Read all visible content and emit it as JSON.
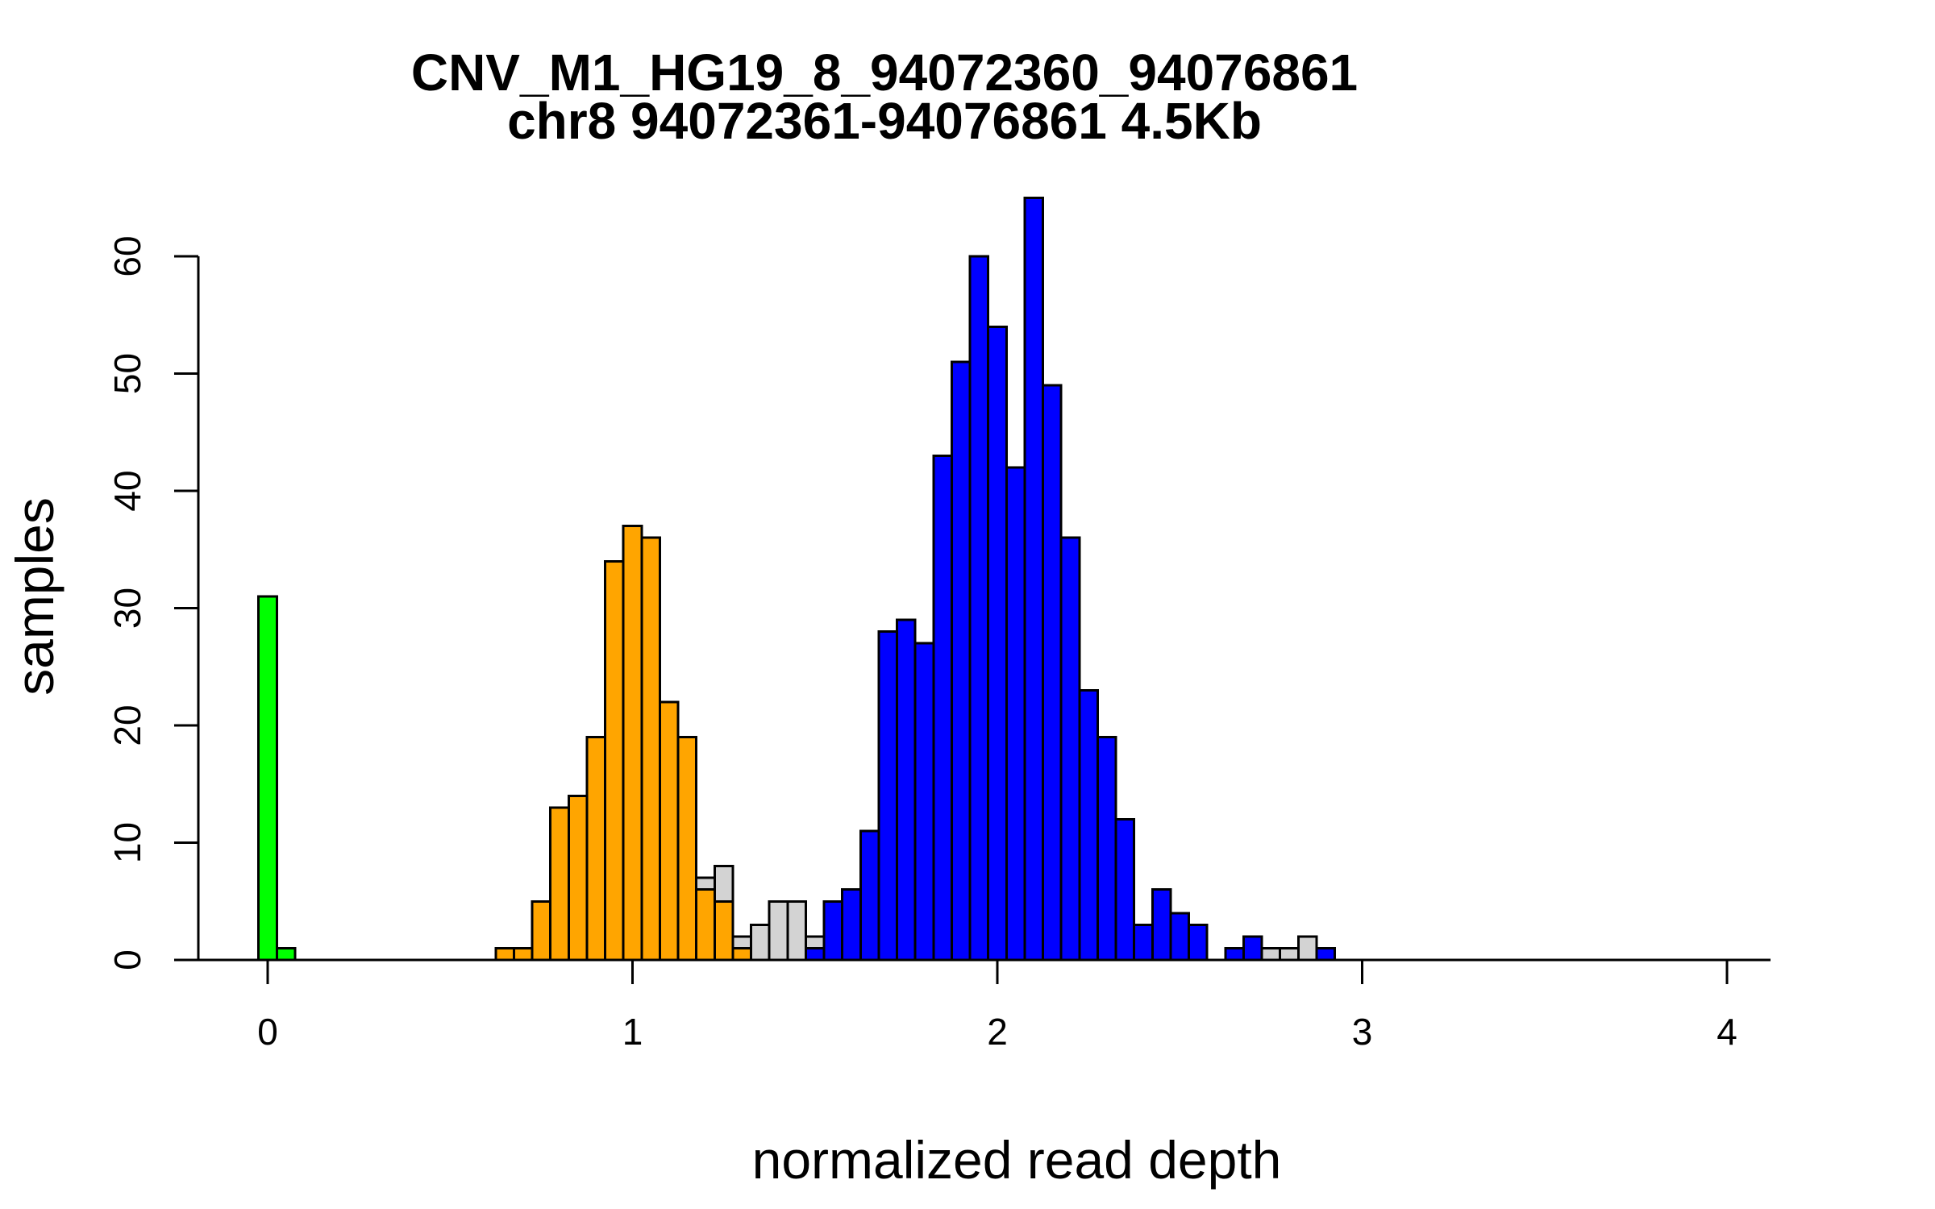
{
  "title": {
    "line1": "CNV_M1_HG19_8_94072360_94076861",
    "line2": "chr8 94072361-94076861 4.5Kb"
  },
  "colors": {
    "green": "#00FF00",
    "orange": "#FFA500",
    "blue": "#0000FF",
    "grey": "#D3D3D3",
    "axis": "#000000",
    "background": "#FFFFFF"
  },
  "chart_data": {
    "type": "bar",
    "subtype": "overlaid-histogram",
    "title": "CNV_M1_HG19_8_94072360_94076861 / chr8 94072361-94076861 4.5Kb",
    "xlabel": "normalized read depth",
    "ylabel": "samples",
    "bin_width": 0.05,
    "xlim": [
      -0.19,
      4.12
    ],
    "ylim": [
      0,
      60
    ],
    "x_ticks": [
      0,
      1,
      2,
      3,
      4
    ],
    "y_ticks": [
      0,
      10,
      20,
      30,
      40,
      50,
      60
    ],
    "grid": false,
    "legend_position": "none",
    "series": [
      {
        "name": "grey-bars",
        "color_key": "grey",
        "bins": [
          [
            1.2,
            7
          ],
          [
            1.25,
            8
          ],
          [
            1.3,
            2
          ],
          [
            1.35,
            3
          ],
          [
            1.4,
            5
          ],
          [
            1.45,
            5
          ],
          [
            1.5,
            2
          ],
          [
            2.75,
            1
          ],
          [
            2.8,
            1
          ],
          [
            2.85,
            2
          ]
        ]
      },
      {
        "name": "green-bars",
        "color_key": "green",
        "bins": [
          [
            0.0,
            31
          ],
          [
            0.05,
            1
          ]
        ]
      },
      {
        "name": "orange-bars",
        "color_key": "orange",
        "bins": [
          [
            0.65,
            1
          ],
          [
            0.7,
            1
          ],
          [
            0.75,
            5
          ],
          [
            0.8,
            13
          ],
          [
            0.85,
            14
          ],
          [
            0.9,
            19
          ],
          [
            0.95,
            34
          ],
          [
            1.0,
            37
          ],
          [
            1.05,
            36
          ],
          [
            1.1,
            22
          ],
          [
            1.15,
            19
          ],
          [
            1.2,
            6
          ],
          [
            1.25,
            5
          ],
          [
            1.3,
            1
          ]
        ]
      },
      {
        "name": "blue-bars",
        "color_key": "blue",
        "bins": [
          [
            1.5,
            1
          ],
          [
            1.55,
            5
          ],
          [
            1.6,
            6
          ],
          [
            1.65,
            11
          ],
          [
            1.7,
            28
          ],
          [
            1.75,
            29
          ],
          [
            1.8,
            27
          ],
          [
            1.85,
            43
          ],
          [
            1.9,
            51
          ],
          [
            1.95,
            60
          ],
          [
            2.0,
            54
          ],
          [
            2.05,
            42
          ],
          [
            2.1,
            65
          ],
          [
            2.15,
            49
          ],
          [
            2.2,
            36
          ],
          [
            2.25,
            23
          ],
          [
            2.3,
            19
          ],
          [
            2.35,
            12
          ],
          [
            2.4,
            3
          ],
          [
            2.45,
            6
          ],
          [
            2.5,
            4
          ],
          [
            2.55,
            3
          ],
          [
            2.65,
            1
          ],
          [
            2.7,
            2
          ],
          [
            2.9,
            1
          ]
        ]
      }
    ]
  }
}
